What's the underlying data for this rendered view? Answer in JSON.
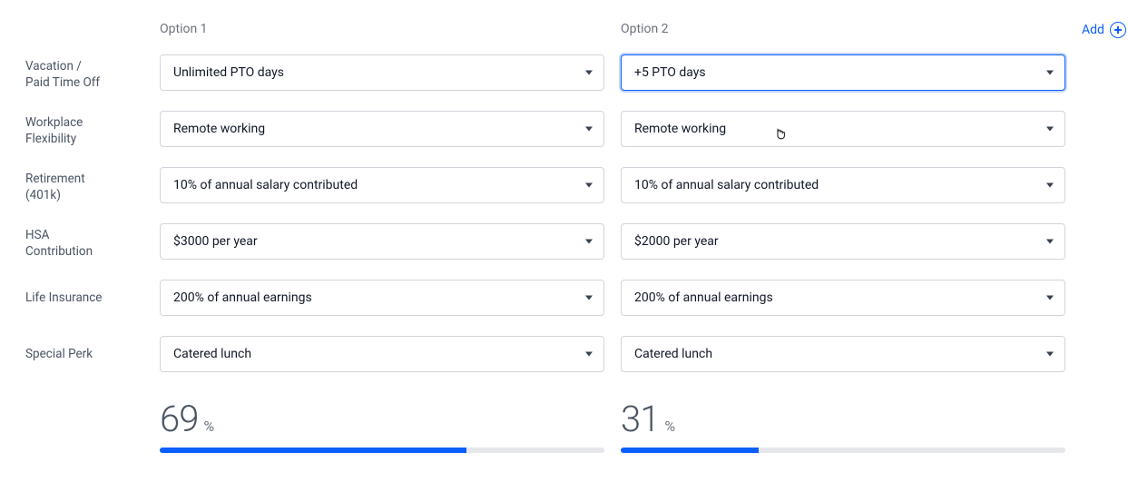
{
  "columns": {
    "option1": "Option 1",
    "option2": "Option 2"
  },
  "add": {
    "label": "Add"
  },
  "rows": [
    {
      "label": "Vacation /\nPaid Time Off",
      "opt1": "Unlimited PTO days",
      "opt2": "+5 PTO days",
      "opt2_focused": true
    },
    {
      "label": "Workplace\nFlexibility",
      "opt1": "Remote working",
      "opt2": "Remote working"
    },
    {
      "label": "Retirement\n(401k)",
      "opt1": "10% of annual salary contributed",
      "opt2": "10% of annual salary contributed"
    },
    {
      "label": "HSA\nContribution",
      "opt1": "$3000 per year",
      "opt2": "$2000 per year"
    },
    {
      "label": "Life Insurance",
      "opt1": "200% of annual earnings",
      "opt2": "200% of annual earnings"
    },
    {
      "label": "Special Perk",
      "opt1": "Catered lunch",
      "opt2": "Catered lunch"
    }
  ],
  "results": {
    "opt1_pct": 69,
    "opt2_pct": 31,
    "pct_sign": "%",
    "bar_color": "#0b5fff",
    "bar_bg": "#e5e7eb"
  },
  "cursor": {
    "row_index": 1,
    "col": "opt2"
  }
}
